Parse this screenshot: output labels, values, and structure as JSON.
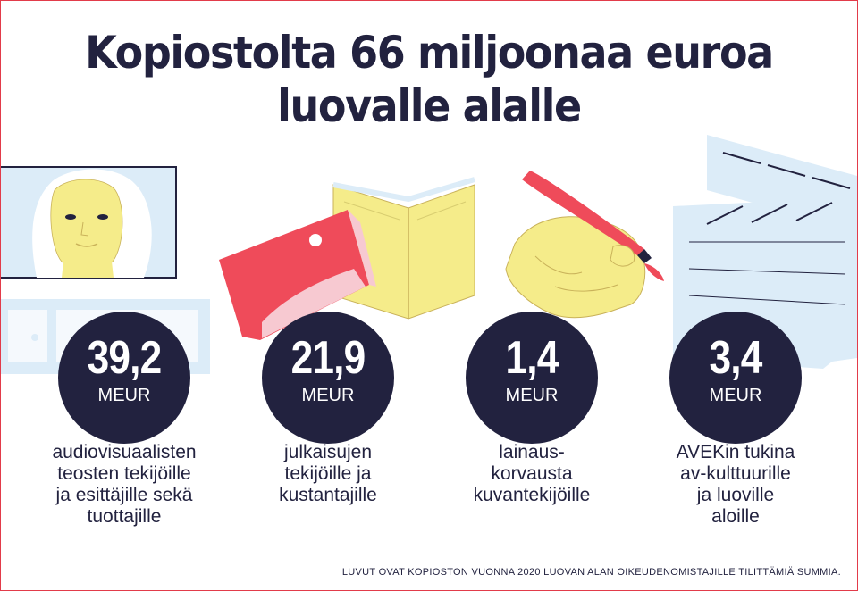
{
  "title": {
    "line1": "Kopiostolta 66 miljoonaa euroa",
    "line2": "luovalle alalle"
  },
  "stats": [
    {
      "value": "39,2",
      "unit": "MEUR",
      "lines": [
        "audiovisuaalisten",
        "teosten tekijöille",
        "ja esittäjille sekä",
        "tuottajille"
      ]
    },
    {
      "value": "21,9",
      "unit": "MEUR",
      "lines": [
        "julkaisujen",
        "tekijöille ja",
        "kustantajille"
      ]
    },
    {
      "value": "1,4",
      "unit": "MEUR",
      "lines": [
        "lainaus-",
        "korvausta",
        "kuvantekijöille"
      ]
    },
    {
      "value": "3,4",
      "unit": "MEUR",
      "lines": [
        "AVEKin tukina",
        "av-kulttuurille",
        "ja luoville",
        "aloille"
      ]
    }
  ],
  "footnote": "LUVUT OVAT KOPIOSTON VUONNA 2020 LUOVAN ALAN OIKEUDENOMISTAJILLE TILITTÄMIÄ SUMMIA.",
  "colors": {
    "navy": "#22223f",
    "yellow": "#f5ec8a",
    "red": "#ef4b5a",
    "pink": "#f7c9d1",
    "lightblue": "#dcecf8",
    "border": "#e23b4a"
  },
  "illustrations": [
    "tv-face-illustration",
    "books-illustration",
    "hand-brush-illustration",
    "clapperboard-illustration"
  ]
}
